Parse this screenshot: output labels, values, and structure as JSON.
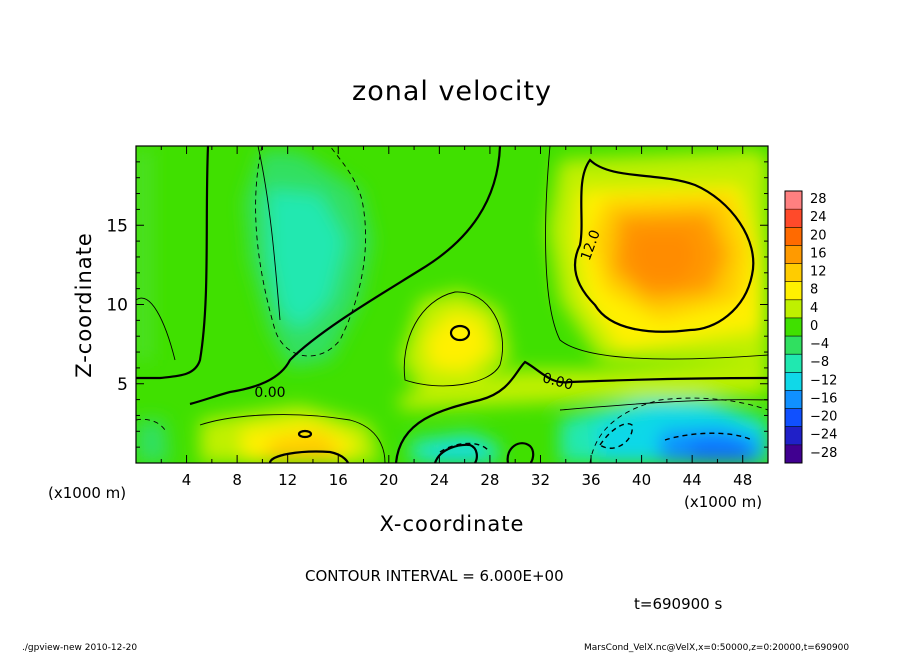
{
  "page": {
    "title": "zonal velocity",
    "footer_left": "./gpview-new   2010-12-20",
    "footer_right": "MarsCond_VelX.nc@VelX,x=0:50000,z=0:20000,t=690900",
    "contour_note": "CONTOUR INTERVAL = 6.000E+00",
    "time_note": "t=690900  s"
  },
  "chart_data": {
    "type": "heatmap",
    "title": "zonal velocity",
    "xlabel": "X-coordinate",
    "ylabel": "Z-coordinate",
    "x_unit": "(x1000 m)",
    "x_range": [
      0,
      50
    ],
    "y_range": [
      0,
      20
    ],
    "x_ticks": [
      4,
      8,
      12,
      16,
      20,
      24,
      28,
      32,
      36,
      40,
      44,
      48
    ],
    "y_ticks": [
      5,
      10,
      15
    ],
    "colorbar": {
      "levels": [
        -28,
        -24,
        -20,
        -16,
        -12,
        -8,
        -4,
        0,
        4,
        8,
        12,
        16,
        20,
        24,
        28
      ],
      "labels": [
        "28",
        "24",
        "20",
        "16",
        "12",
        "8",
        "4",
        "0",
        "−4",
        "−8",
        "−12",
        "−16",
        "−20",
        "−24",
        "−28"
      ],
      "colors": [
        "#ff8080",
        "#ff4a2a",
        "#ff6a00",
        "#ff9a00",
        "#ffcc00",
        "#fff000",
        "#bff000",
        "#40e000",
        "#30e060",
        "#20e8b0",
        "#10d8e8",
        "#1090ff",
        "#1050ff",
        "#2020c8",
        "#400090"
      ]
    },
    "contour_labels": [
      "0.00",
      "0.00",
      "12.0"
    ],
    "contour_interval": 6.0,
    "features": [
      {
        "name": "positive max (upper right)",
        "x": 41,
        "z": 13,
        "value": 18
      },
      {
        "name": "local max (center)",
        "x": 26,
        "z": 8.5,
        "value": 10
      },
      {
        "name": "local max (bottom)",
        "x": 13,
        "z": 1.5,
        "value": 12
      },
      {
        "name": "negative min (upper left)",
        "x": 13,
        "z": 12,
        "value": -8
      },
      {
        "name": "negative min (lower right)",
        "x": 44,
        "z": 1,
        "value": -14
      },
      {
        "name": "negative min (bottom center)",
        "x": 25,
        "z": 0.5,
        "value": -9
      }
    ]
  }
}
